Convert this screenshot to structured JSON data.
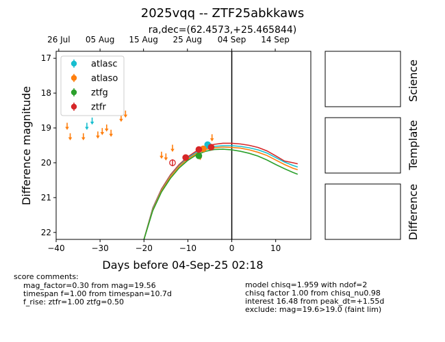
{
  "chart_data": {
    "type": "scatter",
    "title": "2025vqq -- ZTF25abkkaws",
    "subtitle": "ra,dec=(62.4573,+25.465844)",
    "xlabel": "Days before 04-Sep-25 02:18",
    "ylabel": "Difference magnitude",
    "xlim": [
      -40,
      18
    ],
    "ylim": [
      22.2,
      16.8
    ],
    "y_inverted": true,
    "xticks": [
      -40,
      -30,
      -20,
      -10,
      0,
      10
    ],
    "yticks": [
      17,
      18,
      19,
      20,
      21,
      22
    ],
    "top_axis_ticks": [
      {
        "x": -39.4,
        "label": "26 Jul"
      },
      {
        "x": -30.0,
        "label": "05 Aug"
      },
      {
        "x": -20.1,
        "label": "15 Aug"
      },
      {
        "x": -10.1,
        "label": "25 Aug"
      },
      {
        "x": 0.0,
        "label": "04 Sep"
      },
      {
        "x": 9.9,
        "label": "14 Sep"
      }
    ],
    "vline_x": 0,
    "legend_position": "upper-left",
    "series": [
      {
        "name": "atlasc",
        "color": "#17becf",
        "detections": [
          {
            "x": -5.5,
            "y": 19.48,
            "err": 0.05
          }
        ],
        "upper_limits": [
          {
            "x": -33.0,
            "y": 18.95
          },
          {
            "x": -31.8,
            "y": 18.8
          }
        ]
      },
      {
        "name": "atlaso",
        "color": "#ff7f0e",
        "detections": [
          {
            "x": -6.5,
            "y": 19.6,
            "err": 0.06
          }
        ],
        "upper_limits": [
          {
            "x": -37.5,
            "y": 18.95
          },
          {
            "x": -36.8,
            "y": 19.25
          },
          {
            "x": -33.8,
            "y": 19.25
          },
          {
            "x": -30.5,
            "y": 19.2
          },
          {
            "x": -29.5,
            "y": 19.1
          },
          {
            "x": -28.5,
            "y": 19.0
          },
          {
            "x": -27.5,
            "y": 19.15
          },
          {
            "x": -25.2,
            "y": 18.72
          },
          {
            "x": -24.2,
            "y": 18.6
          },
          {
            "x": -16.0,
            "y": 19.78
          },
          {
            "x": -15.0,
            "y": 19.83
          },
          {
            "x": -13.5,
            "y": 19.58
          },
          {
            "x": -7.2,
            "y": 19.82
          },
          {
            "x": -4.5,
            "y": 19.28
          }
        ]
      },
      {
        "name": "ztfg",
        "color": "#2ca02c",
        "detections": [
          {
            "x": -7.5,
            "y": 19.8,
            "err": 0.08
          }
        ],
        "upper_limits": []
      },
      {
        "name": "ztfr",
        "color": "#d62728",
        "detections": [
          {
            "x": -13.5,
            "y": 20.0,
            "err": 0.1,
            "hollow": true
          },
          {
            "x": -10.5,
            "y": 19.85,
            "err": 0.07
          },
          {
            "x": -7.5,
            "y": 19.62,
            "err": 0.06
          },
          {
            "x": -4.7,
            "y": 19.55,
            "err": 0.06
          }
        ],
        "upper_limits": []
      }
    ],
    "model_curves": [
      {
        "color": "#d62728",
        "points": [
          [
            -20,
            22.2
          ],
          [
            -18,
            21.3
          ],
          [
            -16,
            20.75
          ],
          [
            -14,
            20.35
          ],
          [
            -12,
            20.05
          ],
          [
            -10,
            19.83
          ],
          [
            -8,
            19.66
          ],
          [
            -6,
            19.54
          ],
          [
            -4,
            19.47
          ],
          [
            -2,
            19.44
          ],
          [
            0,
            19.44
          ],
          [
            2,
            19.46
          ],
          [
            4,
            19.5
          ],
          [
            6,
            19.56
          ],
          [
            8,
            19.66
          ],
          [
            10,
            19.8
          ],
          [
            12,
            19.95
          ],
          [
            14,
            20.0
          ],
          [
            15,
            20.03
          ]
        ]
      },
      {
        "color": "#17becf",
        "points": [
          [
            -20,
            22.2
          ],
          [
            -18,
            21.32
          ],
          [
            -16,
            20.78
          ],
          [
            -14,
            20.38
          ],
          [
            -12,
            20.08
          ],
          [
            -10,
            19.86
          ],
          [
            -8,
            19.7
          ],
          [
            -6,
            19.59
          ],
          [
            -4,
            19.53
          ],
          [
            -2,
            19.51
          ],
          [
            0,
            19.51
          ],
          [
            2,
            19.53
          ],
          [
            4,
            19.57
          ],
          [
            6,
            19.63
          ],
          [
            8,
            19.72
          ],
          [
            10,
            19.85
          ],
          [
            12,
            19.98
          ],
          [
            14,
            20.08
          ],
          [
            15,
            20.12
          ]
        ]
      },
      {
        "color": "#ff7f0e",
        "points": [
          [
            -20,
            22.2
          ],
          [
            -18,
            21.35
          ],
          [
            -16,
            20.8
          ],
          [
            -14,
            20.4
          ],
          [
            -12,
            20.1
          ],
          [
            -10,
            19.89
          ],
          [
            -8,
            19.73
          ],
          [
            -6,
            19.62
          ],
          [
            -4,
            19.57
          ],
          [
            -2,
            19.55
          ],
          [
            0,
            19.56
          ],
          [
            2,
            19.58
          ],
          [
            4,
            19.63
          ],
          [
            6,
            19.7
          ],
          [
            8,
            19.79
          ],
          [
            10,
            19.92
          ],
          [
            12,
            20.05
          ],
          [
            14,
            20.16
          ],
          [
            15,
            20.2
          ]
        ]
      },
      {
        "color": "#2ca02c",
        "points": [
          [
            -20,
            22.2
          ],
          [
            -18,
            21.38
          ],
          [
            -16,
            20.84
          ],
          [
            -14,
            20.45
          ],
          [
            -12,
            20.15
          ],
          [
            -10,
            19.93
          ],
          [
            -8,
            19.77
          ],
          [
            -6,
            19.67
          ],
          [
            -4,
            19.62
          ],
          [
            -2,
            19.61
          ],
          [
            0,
            19.63
          ],
          [
            2,
            19.67
          ],
          [
            4,
            19.73
          ],
          [
            6,
            19.81
          ],
          [
            8,
            19.92
          ],
          [
            10,
            20.05
          ],
          [
            12,
            20.17
          ],
          [
            14,
            20.28
          ],
          [
            15,
            20.33
          ]
        ]
      }
    ]
  },
  "side_panels": [
    "Science",
    "Template",
    "Difference"
  ],
  "notes_left": {
    "heading": "score comments:",
    "lines": [
      "mag_factor=0.30 from mag=19.56",
      "timespan f=1.00 from timespan=10.7d",
      "f_rise: ztfr=1.00 ztfg=0.50"
    ]
  },
  "notes_right": {
    "lines": [
      "model chisq=1.959 with ndof=2",
      "chisq factor 1.00 from chisq_nu0.98",
      "interest 16.48 from peak_dt=+1.55d",
      "exclude: mag=19.6>19.0 (faint lim)"
    ]
  }
}
